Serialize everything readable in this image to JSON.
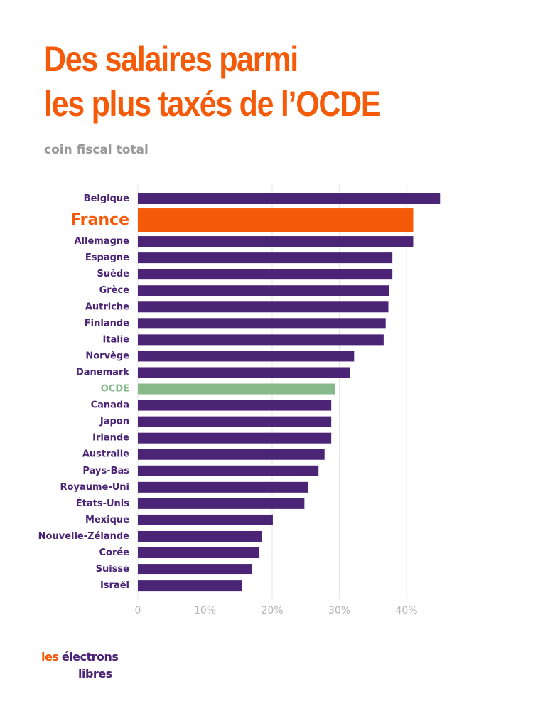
{
  "header": {
    "title_line1": "Des salaires parmi",
    "title_line2": "les plus taxés de l’OCDE",
    "subtitle": "coin fiscal total"
  },
  "colors": {
    "title": "#f45a08",
    "bar_default": "#4b2476",
    "bar_highlight": "#f45a08",
    "bar_average": "#87b98a",
    "subtitle": "#9a9a9a",
    "grid": "#e6e6e6",
    "tick": "#b4b4b4"
  },
  "logo": {
    "word1": "les",
    "word2": "électrons",
    "word3": "libres"
  },
  "chart_data": {
    "type": "bar",
    "orientation": "horizontal",
    "categories": [
      "Belgique",
      "France",
      "Allemagne",
      "Espagne",
      "Suède",
      "Grèce",
      "Autriche",
      "Finlande",
      "Italie",
      "Norvège",
      "Danemark",
      "OCDE",
      "Canada",
      "Japon",
      "Irlande",
      "Australie",
      "Pays-Bas",
      "Royaume-Uni",
      "États-Unis",
      "Mexique",
      "Nouvelle-Zélande",
      "Corée",
      "Suisse",
      "Israël"
    ],
    "values": [
      45.0,
      41.0,
      41.0,
      37.9,
      37.9,
      37.4,
      37.3,
      36.9,
      36.6,
      32.2,
      31.6,
      29.4,
      28.8,
      28.8,
      28.8,
      27.8,
      26.9,
      25.4,
      24.8,
      20.1,
      18.5,
      18.1,
      17.0,
      15.5
    ],
    "highlight": "France",
    "average": "OCDE",
    "xlim": [
      0,
      45
    ],
    "xticks": [
      0,
      10,
      20,
      30,
      40
    ],
    "xtick_labels": [
      "0",
      "10%",
      "20%",
      "30%",
      "40%"
    ],
    "grid": true,
    "title": "Des salaires parmi les plus taxés de l’OCDE",
    "subtitle": "coin fiscal total",
    "xlabel": "",
    "ylabel": ""
  }
}
